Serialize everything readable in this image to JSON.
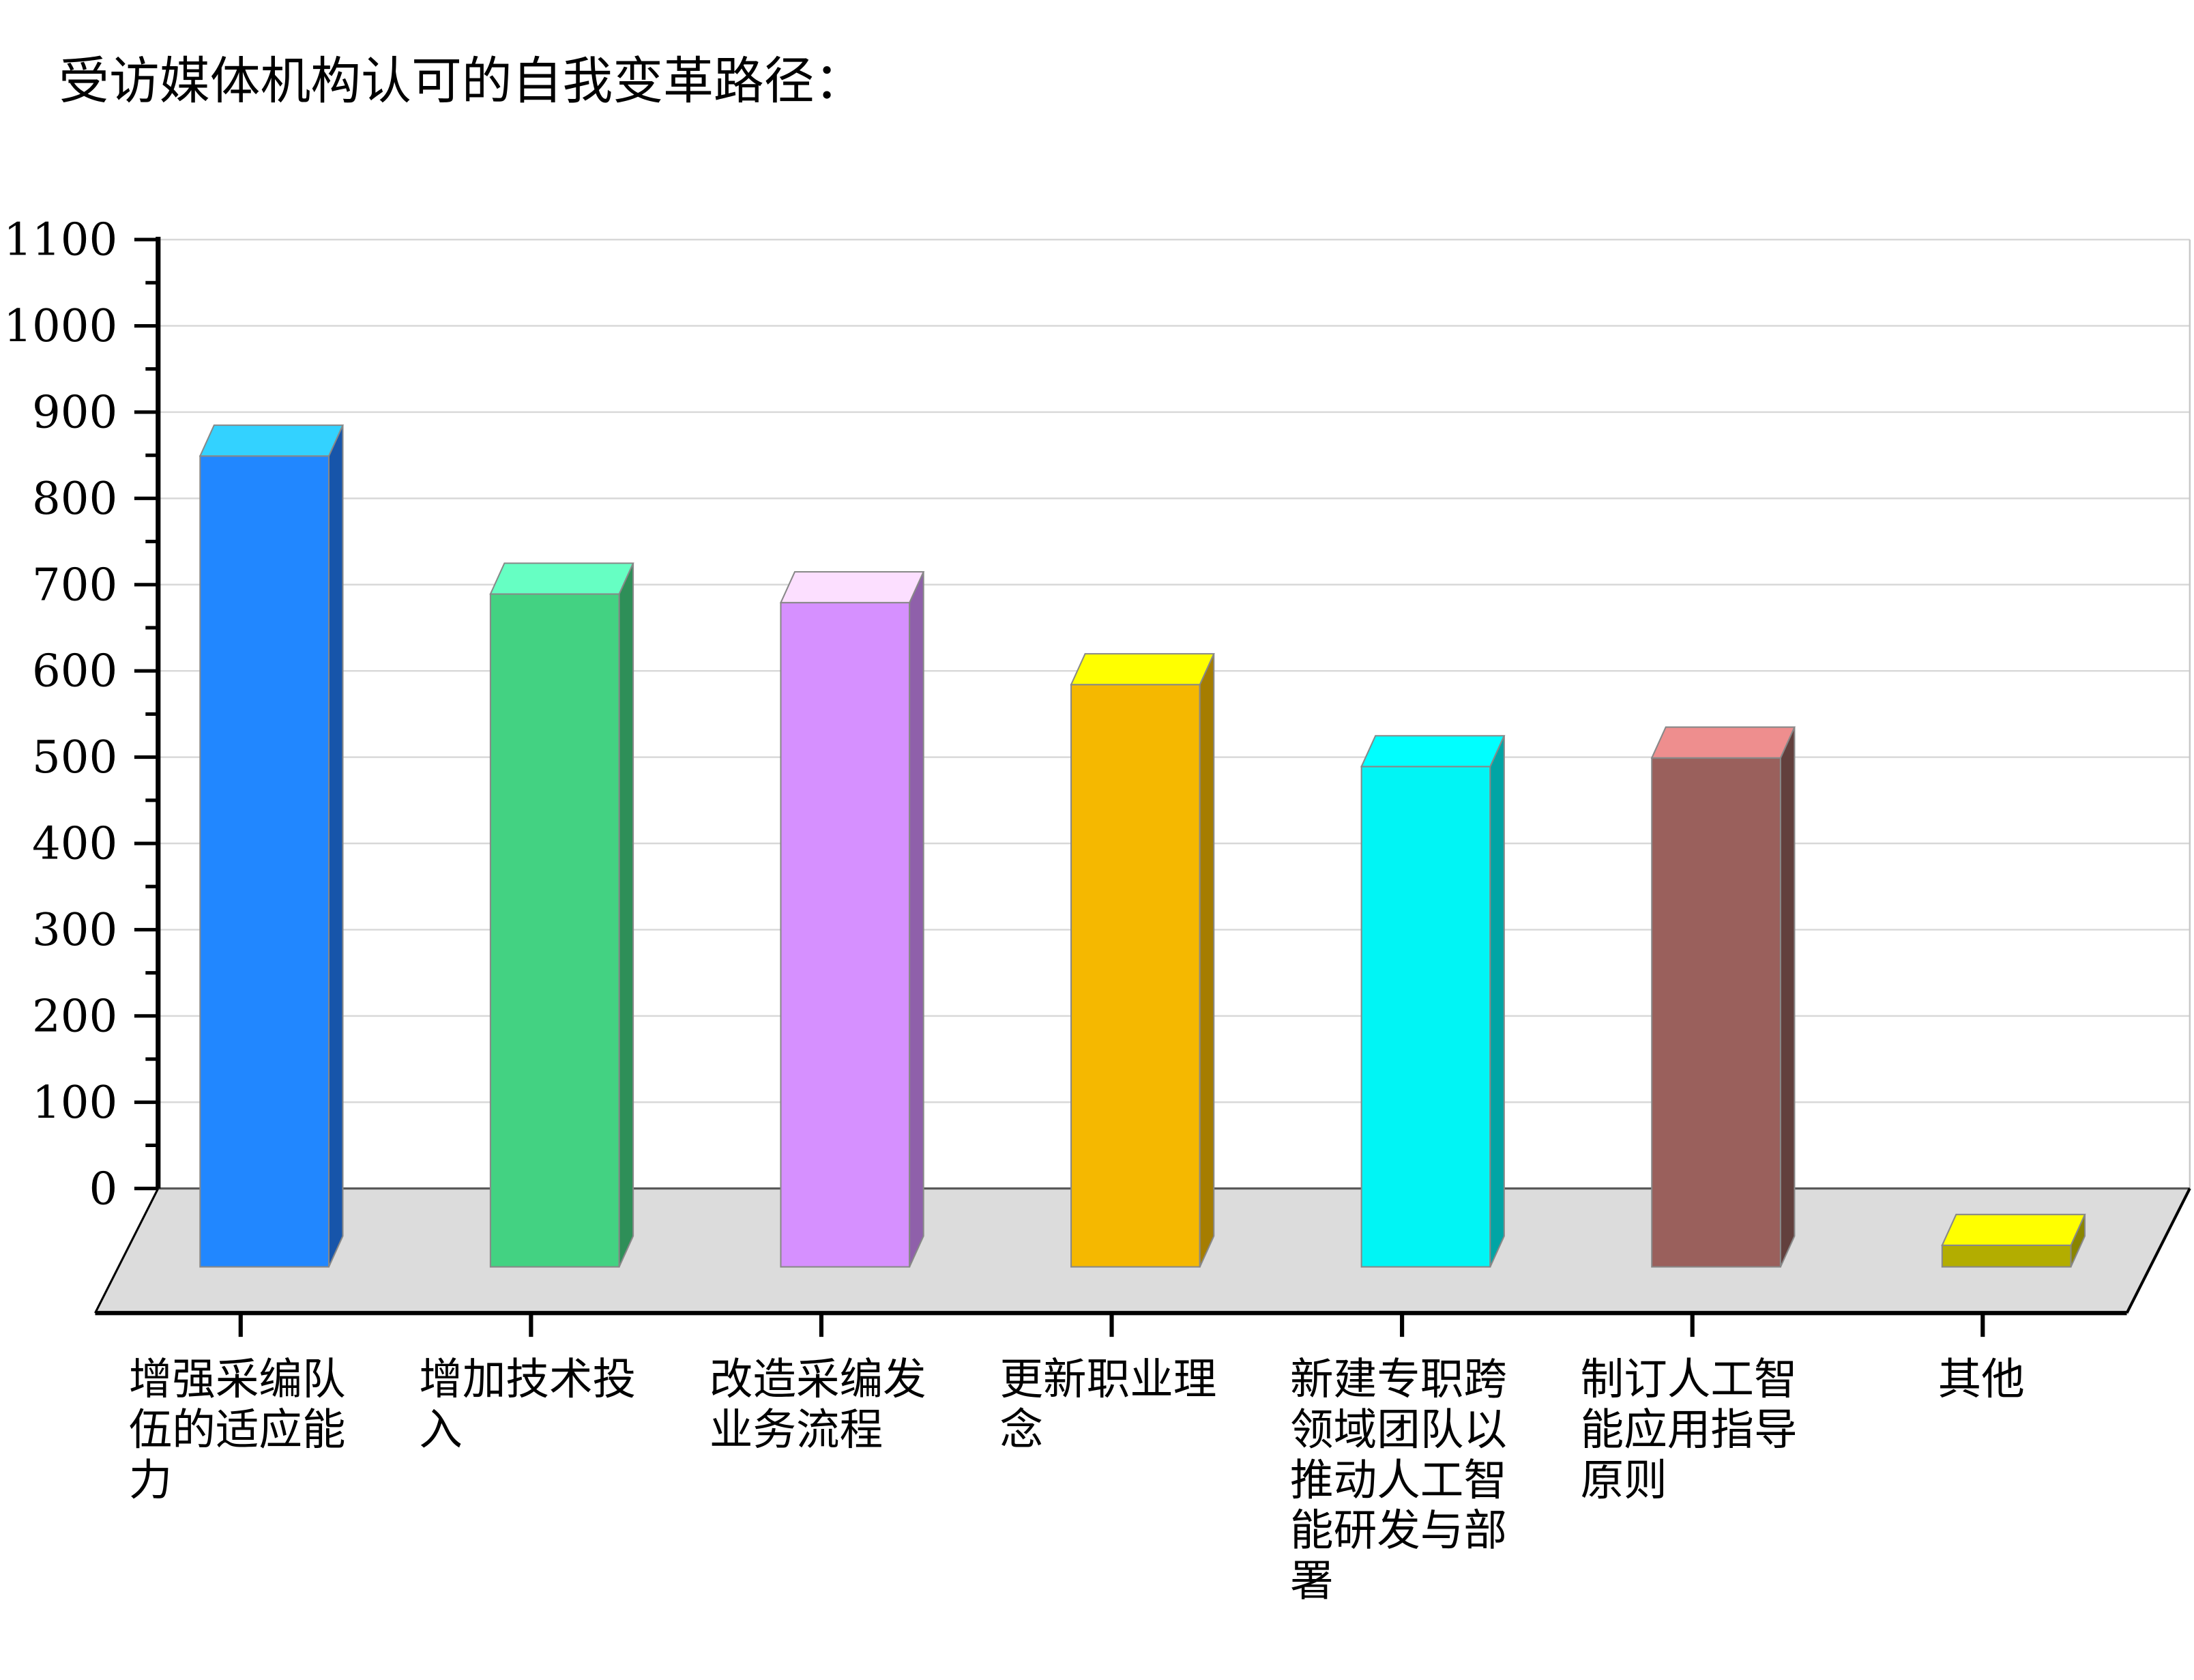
{
  "chart_data": {
    "type": "bar",
    "style": "3d-column",
    "title": "受访媒体机构认可的自我变革路径：",
    "xlabel": "",
    "ylabel": "",
    "ylim": [
      0,
      1100
    ],
    "yticks": [
      0,
      100,
      200,
      300,
      400,
      500,
      600,
      700,
      800,
      900,
      1000,
      1100
    ],
    "grid": true,
    "legend": "none",
    "categories": [
      "增强采编队伍的适应能力",
      "增加技术投入",
      "改造采编发业务流程",
      "更新职业理念",
      "新建专职跨领域团队以推动人工智能研发与部署",
      "制订人工智能应用指导原则",
      "其他"
    ],
    "category_lines": [
      [
        "增强采编队",
        "伍的适应能",
        "力"
      ],
      [
        "增加技术投",
        "入"
      ],
      [
        "改造采编发",
        "业务流程"
      ],
      [
        "更新职业理",
        "念"
      ],
      [
        "新建专职跨",
        "领域团队以",
        "推动人工智",
        "能研发与部",
        "署"
      ],
      [
        "制订人工智",
        "能应用指导",
        "原则"
      ],
      [
        "其他"
      ]
    ],
    "values": [
      940,
      780,
      770,
      675,
      580,
      590,
      25
    ],
    "colors": [
      {
        "front": "#2187FF",
        "top": "#33D2FF",
        "side": "#1755AA"
      },
      {
        "front": "#43D282",
        "top": "#66FFC3",
        "side": "#2E8F58"
      },
      {
        "front": "#D690FF",
        "top": "#FCDFFF",
        "side": "#8F60AA"
      },
      {
        "front": "#F5B800",
        "top": "#FFFF00",
        "side": "#A67D00"
      },
      {
        "front": "#00F5F5",
        "top": "#00FFFF",
        "side": "#00A5A5"
      },
      {
        "front": "#9A605C",
        "top": "#EE8E8E",
        "side": "#62403D"
      },
      {
        "front": "#B3AD00",
        "top": "#FFFF00",
        "side": "#8A8500"
      }
    ],
    "floor_color": "#DCDCDC"
  }
}
